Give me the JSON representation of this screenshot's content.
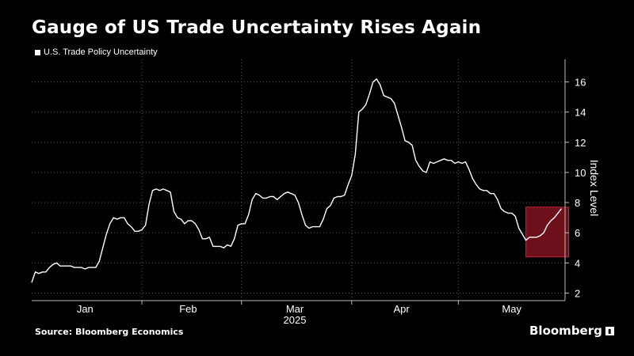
{
  "header": {
    "title": "Gauge of US Trade Uncertainty Rises Again"
  },
  "footer": {
    "source": "Source: Bloomberg Economics",
    "brand": "Bloomberg"
  },
  "colors": {
    "background": "#000000",
    "line": "#ffffff",
    "highlight_fill": "#6e0f1c",
    "highlight_border": "#c3283a",
    "gridline": "#555555"
  },
  "chart_data": {
    "type": "line",
    "title": "Gauge of US Trade Uncertainty Rises Again",
    "ylabel": "Index Level",
    "year_label": "2025",
    "ylim": [
      1.5,
      17.5
    ],
    "y_ticks": [
      2,
      4,
      6,
      8,
      10,
      12,
      14,
      16
    ],
    "x_range": [
      "2025-01-01",
      "2025-05-31"
    ],
    "x_tick_labels": [
      "Jan",
      "Feb",
      "Mar",
      "Apr",
      "May"
    ],
    "x_tick_label_dates": [
      "2025-01-16",
      "2025-02-14",
      "2025-03-16",
      "2025-04-15",
      "2025-05-16"
    ],
    "grid_lines_x": [
      "2025-02-01",
      "2025-03-01",
      "2025-04-01",
      "2025-05-01"
    ],
    "grid": true,
    "legend_position": "top-left",
    "highlight": {
      "from": "2025-05-20",
      "to": "2025-06-01",
      "y_range": [
        4.4,
        7.7
      ]
    },
    "series": [
      {
        "name": "U.S. Trade Policy Uncertainty",
        "x": [
          "2025-01-01",
          "2025-01-02",
          "2025-01-03",
          "2025-01-04",
          "2025-01-05",
          "2025-01-06",
          "2025-01-07",
          "2025-01-08",
          "2025-01-09",
          "2025-01-10",
          "2025-01-11",
          "2025-01-12",
          "2025-01-13",
          "2025-01-14",
          "2025-01-15",
          "2025-01-16",
          "2025-01-17",
          "2025-01-18",
          "2025-01-19",
          "2025-01-20",
          "2025-01-21",
          "2025-01-22",
          "2025-01-23",
          "2025-01-24",
          "2025-01-25",
          "2025-01-26",
          "2025-01-27",
          "2025-01-28",
          "2025-01-29",
          "2025-01-30",
          "2025-01-31",
          "2025-02-01",
          "2025-02-02",
          "2025-02-03",
          "2025-02-04",
          "2025-02-05",
          "2025-02-06",
          "2025-02-07",
          "2025-02-08",
          "2025-02-09",
          "2025-02-10",
          "2025-02-11",
          "2025-02-12",
          "2025-02-13",
          "2025-02-14",
          "2025-02-15",
          "2025-02-16",
          "2025-02-17",
          "2025-02-18",
          "2025-02-19",
          "2025-02-20",
          "2025-02-21",
          "2025-02-22",
          "2025-02-23",
          "2025-02-24",
          "2025-02-25",
          "2025-02-26",
          "2025-02-27",
          "2025-02-28",
          "2025-03-01",
          "2025-03-02",
          "2025-03-03",
          "2025-03-04",
          "2025-03-05",
          "2025-03-06",
          "2025-03-07",
          "2025-03-08",
          "2025-03-09",
          "2025-03-10",
          "2025-03-11",
          "2025-03-12",
          "2025-03-13",
          "2025-03-14",
          "2025-03-15",
          "2025-03-16",
          "2025-03-17",
          "2025-03-18",
          "2025-03-19",
          "2025-03-20",
          "2025-03-21",
          "2025-03-22",
          "2025-03-23",
          "2025-03-24",
          "2025-03-25",
          "2025-03-26",
          "2025-03-27",
          "2025-03-28",
          "2025-03-29",
          "2025-03-30",
          "2025-03-31",
          "2025-04-01",
          "2025-04-02",
          "2025-04-03",
          "2025-04-04",
          "2025-04-05",
          "2025-04-06",
          "2025-04-07",
          "2025-04-08",
          "2025-04-09",
          "2025-04-10",
          "2025-04-11",
          "2025-04-12",
          "2025-04-13",
          "2025-04-14",
          "2025-04-15",
          "2025-04-16",
          "2025-04-17",
          "2025-04-18",
          "2025-04-19",
          "2025-04-20",
          "2025-04-21",
          "2025-04-22",
          "2025-04-23",
          "2025-04-24",
          "2025-04-25",
          "2025-04-26",
          "2025-04-27",
          "2025-04-28",
          "2025-04-29",
          "2025-04-30",
          "2025-05-01",
          "2025-05-02",
          "2025-05-03",
          "2025-05-04",
          "2025-05-05",
          "2025-05-06",
          "2025-05-07",
          "2025-05-08",
          "2025-05-09",
          "2025-05-10",
          "2025-05-11",
          "2025-05-12",
          "2025-05-13",
          "2025-05-14",
          "2025-05-15",
          "2025-05-16",
          "2025-05-17",
          "2025-05-18",
          "2025-05-19",
          "2025-05-20",
          "2025-05-21",
          "2025-05-22",
          "2025-05-23",
          "2025-05-24",
          "2025-05-25",
          "2025-05-26",
          "2025-05-27",
          "2025-05-28",
          "2025-05-29",
          "2025-05-30"
        ],
        "values": [
          2.7,
          3.4,
          3.3,
          3.4,
          3.4,
          3.7,
          3.9,
          4.0,
          3.8,
          3.8,
          3.8,
          3.8,
          3.7,
          3.7,
          3.7,
          3.6,
          3.7,
          3.7,
          3.7,
          4.1,
          5.0,
          5.9,
          6.6,
          7.0,
          6.9,
          7.0,
          7.0,
          6.6,
          6.4,
          6.1,
          6.1,
          6.2,
          6.5,
          7.9,
          8.8,
          8.9,
          8.8,
          8.9,
          8.8,
          8.7,
          7.4,
          7.0,
          6.9,
          6.6,
          6.8,
          6.8,
          6.6,
          6.2,
          5.6,
          5.6,
          5.7,
          5.1,
          5.1,
          5.1,
          5.0,
          5.2,
          5.1,
          5.6,
          6.5,
          6.6,
          6.6,
          7.2,
          8.2,
          8.6,
          8.5,
          8.3,
          8.3,
          8.4,
          8.4,
          8.2,
          8.4,
          8.6,
          8.7,
          8.6,
          8.5,
          8.0,
          7.2,
          6.5,
          6.3,
          6.4,
          6.4,
          6.4,
          6.9,
          7.6,
          7.8,
          8.3,
          8.4,
          8.4,
          8.5,
          9.2,
          9.8,
          11.2,
          14.0,
          14.2,
          14.5,
          15.2,
          16.0,
          16.2,
          15.8,
          15.1,
          15.0,
          14.9,
          14.6,
          13.8,
          13.0,
          12.1,
          12.0,
          11.8,
          10.8,
          10.4,
          10.1,
          10.0,
          10.7,
          10.6,
          10.7,
          10.8,
          10.9,
          10.8,
          10.8,
          10.6,
          10.7,
          10.6,
          10.7,
          10.2,
          9.6,
          9.2,
          8.9,
          8.8,
          8.8,
          8.6,
          8.6,
          8.2,
          7.6,
          7.4,
          7.3,
          7.3,
          7.1,
          6.3,
          5.9,
          5.5,
          5.7,
          5.7,
          5.7,
          5.8,
          6.0,
          6.5,
          6.8,
          7.0,
          7.3,
          7.6
        ]
      }
    ]
  }
}
